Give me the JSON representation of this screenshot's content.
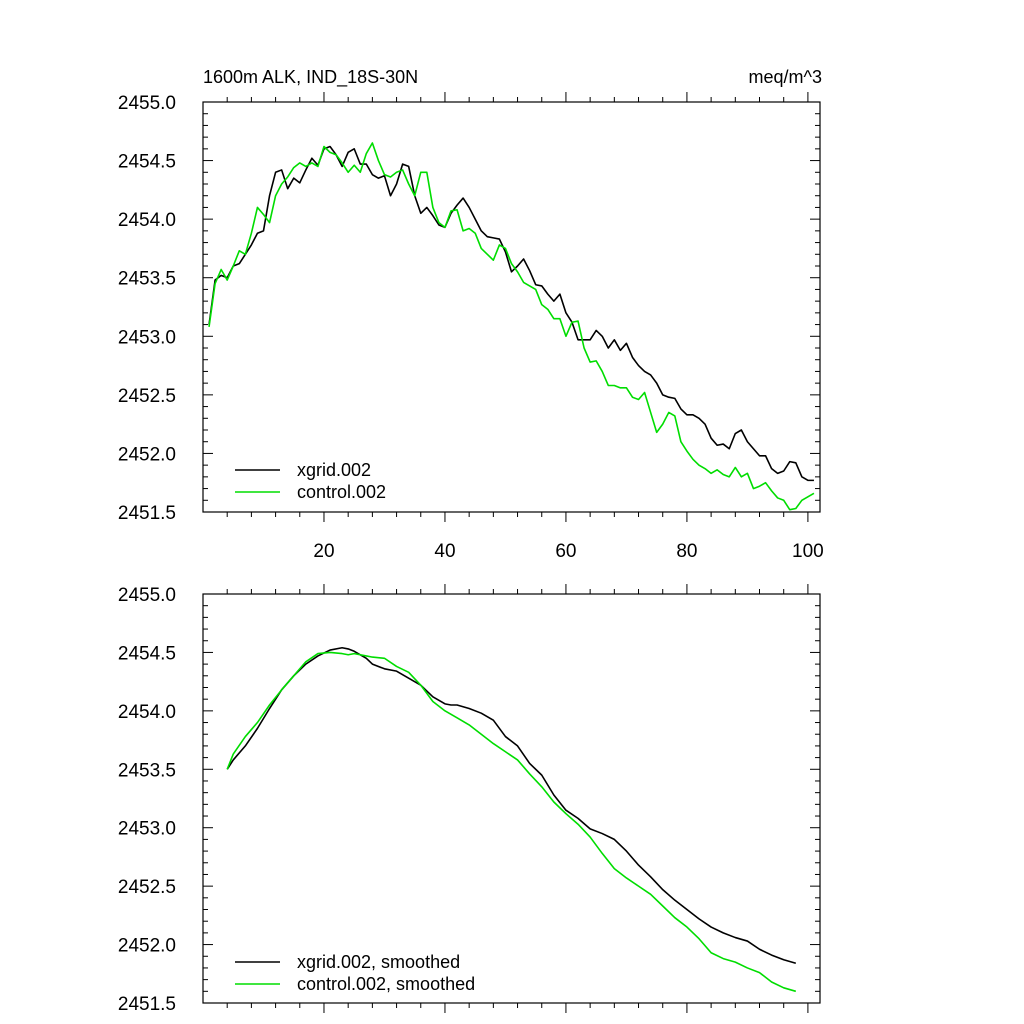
{
  "colors": {
    "xgrid": "#000000",
    "control": "#00dd00",
    "frame": "#000000"
  },
  "chart_data": [
    {
      "type": "line",
      "title": "1600m ALK, IND_18S-30N",
      "units": "meq/m^3",
      "xlabel": "",
      "ylabel": "",
      "xlim": [
        0,
        102
      ],
      "ylim": [
        2451.5,
        2455.0
      ],
      "x_ticks": [
        "20",
        "40",
        "60",
        "80",
        "100"
      ],
      "y_ticks": [
        "2455.0",
        "2454.5",
        "2454.0",
        "2453.5",
        "2453.0",
        "2452.5",
        "2452.0",
        "2451.5"
      ],
      "legend_position": "bottom-left",
      "series": [
        {
          "name": "xgrid.002",
          "color_key": "xgrid",
          "values": [
            2453.1,
            2453.48,
            2453.52,
            2453.5,
            2453.6,
            2453.62,
            2453.7,
            2453.78,
            2453.88,
            2453.9,
            2454.2,
            2454.4,
            2454.42,
            2454.26,
            2454.35,
            2454.31,
            2454.42,
            2454.52,
            2454.46,
            2454.6,
            2454.62,
            2454.55,
            2454.45,
            2454.57,
            2454.6,
            2454.47,
            2454.47,
            2454.38,
            2454.35,
            2454.37,
            2454.2,
            2454.3,
            2454.47,
            2454.45,
            2454.2,
            2454.05,
            2454.1,
            2454.03,
            2453.95,
            2453.93,
            2454.05,
            2454.12,
            2454.18,
            2454.1,
            2454.0,
            2453.9,
            2453.85,
            2453.84,
            2453.83,
            2453.72,
            2453.55,
            2453.6,
            2453.66,
            2453.56,
            2453.44,
            2453.43,
            2453.36,
            2453.3,
            2453.36,
            2453.2,
            2453.12,
            2452.97,
            2452.97,
            2452.97,
            2453.05,
            2453.0,
            2452.9,
            2452.97,
            2452.88,
            2452.94,
            2452.82,
            2452.75,
            2452.7,
            2452.67,
            2452.6,
            2452.5,
            2452.48,
            2452.47,
            2452.38,
            2452.33,
            2452.33,
            2452.3,
            2452.25,
            2452.13,
            2452.07,
            2452.08,
            2452.04,
            2452.17,
            2452.2,
            2452.1,
            2452.04,
            2451.98,
            2451.98,
            2451.87,
            2451.83,
            2451.85,
            2451.93,
            2451.92,
            2451.8,
            2451.77,
            2451.77
          ]
        },
        {
          "name": "control.002",
          "color_key": "control",
          "values": [
            2453.08,
            2453.45,
            2453.57,
            2453.48,
            2453.6,
            2453.73,
            2453.7,
            2453.88,
            2454.1,
            2454.04,
            2453.97,
            2454.2,
            2454.3,
            2454.36,
            2454.44,
            2454.48,
            2454.45,
            2454.48,
            2454.45,
            2454.62,
            2454.57,
            2454.55,
            2454.48,
            2454.4,
            2454.46,
            2454.4,
            2454.56,
            2454.65,
            2454.5,
            2454.38,
            2454.36,
            2454.4,
            2454.42,
            2454.3,
            2454.2,
            2454.4,
            2454.4,
            2454.1,
            2453.97,
            2453.93,
            2454.07,
            2454.08,
            2453.9,
            2453.92,
            2453.88,
            2453.75,
            2453.7,
            2453.65,
            2453.78,
            2453.75,
            2453.62,
            2453.55,
            2453.46,
            2453.43,
            2453.4,
            2453.27,
            2453.23,
            2453.15,
            2453.15,
            2453.0,
            2453.12,
            2453.13,
            2452.9,
            2452.78,
            2452.79,
            2452.7,
            2452.58,
            2452.58,
            2452.56,
            2452.56,
            2452.48,
            2452.46,
            2452.52,
            2452.35,
            2452.18,
            2452.25,
            2452.35,
            2452.32,
            2452.1,
            2452.02,
            2451.95,
            2451.9,
            2451.87,
            2451.83,
            2451.86,
            2451.82,
            2451.8,
            2451.88,
            2451.8,
            2451.83,
            2451.7,
            2451.72,
            2451.75,
            2451.68,
            2451.62,
            2451.6,
            2451.52,
            2451.53,
            2451.6,
            2451.63,
            2451.66
          ]
        }
      ]
    },
    {
      "type": "line",
      "title": "",
      "xlabel": "",
      "ylabel": "",
      "xlim": [
        0,
        102
      ],
      "ylim": [
        2451.5,
        2455.0
      ],
      "x_ticks": [],
      "y_ticks": [
        "2455.0",
        "2454.5",
        "2454.0",
        "2453.5",
        "2453.0",
        "2452.5",
        "2452.0",
        "2451.5"
      ],
      "legend_position": "bottom-left",
      "series": [
        {
          "name": "xgrid.002, smoothed",
          "color_key": "xgrid",
          "x": [
            4,
            5,
            7,
            9,
            11,
            13,
            15,
            17,
            19,
            21,
            23,
            24,
            25,
            27,
            28,
            30,
            32,
            34,
            36,
            38,
            40,
            41,
            42,
            44,
            46,
            48,
            50,
            52,
            54,
            56,
            58,
            60,
            62,
            64,
            66,
            68,
            70,
            72,
            74,
            76,
            78,
            80,
            82,
            84,
            86,
            88,
            90,
            92,
            94,
            96,
            98
          ],
          "values": [
            2453.5,
            2453.58,
            2453.7,
            2453.85,
            2454.02,
            2454.18,
            2454.3,
            2454.4,
            2454.47,
            2454.52,
            2454.54,
            2454.53,
            2454.51,
            2454.45,
            2454.4,
            2454.36,
            2454.34,
            2454.28,
            2454.22,
            2454.12,
            2454.06,
            2454.05,
            2454.05,
            2454.02,
            2453.98,
            2453.92,
            2453.78,
            2453.7,
            2453.55,
            2453.45,
            2453.28,
            2453.15,
            2453.08,
            2452.99,
            2452.95,
            2452.9,
            2452.8,
            2452.68,
            2452.58,
            2452.47,
            2452.38,
            2452.3,
            2452.22,
            2452.15,
            2452.1,
            2452.06,
            2452.03,
            2451.96,
            2451.91,
            2451.87,
            2451.84
          ]
        },
        {
          "name": "control.002, smoothed",
          "color_key": "control",
          "x": [
            4,
            5,
            7,
            9,
            11,
            13,
            15,
            17,
            19,
            21,
            23,
            24,
            25,
            27,
            28,
            30,
            32,
            34,
            36,
            38,
            40,
            41,
            42,
            44,
            46,
            48,
            50,
            52,
            54,
            56,
            58,
            60,
            62,
            64,
            66,
            68,
            70,
            72,
            74,
            76,
            78,
            80,
            82,
            84,
            86,
            88,
            90,
            92,
            94,
            96,
            98
          ],
          "values": [
            2453.5,
            2453.63,
            2453.78,
            2453.9,
            2454.05,
            2454.18,
            2454.3,
            2454.42,
            2454.49,
            2454.5,
            2454.49,
            2454.48,
            2454.49,
            2454.47,
            2454.46,
            2454.45,
            2454.38,
            2454.33,
            2454.22,
            2454.08,
            2454.0,
            2453.97,
            2453.94,
            2453.88,
            2453.8,
            2453.72,
            2453.65,
            2453.58,
            2453.46,
            2453.35,
            2453.22,
            2453.12,
            2453.03,
            2452.92,
            2452.78,
            2452.65,
            2452.57,
            2452.5,
            2452.43,
            2452.33,
            2452.23,
            2452.15,
            2452.05,
            2451.93,
            2451.88,
            2451.85,
            2451.8,
            2451.76,
            2451.68,
            2451.63,
            2451.6
          ]
        }
      ]
    }
  ]
}
